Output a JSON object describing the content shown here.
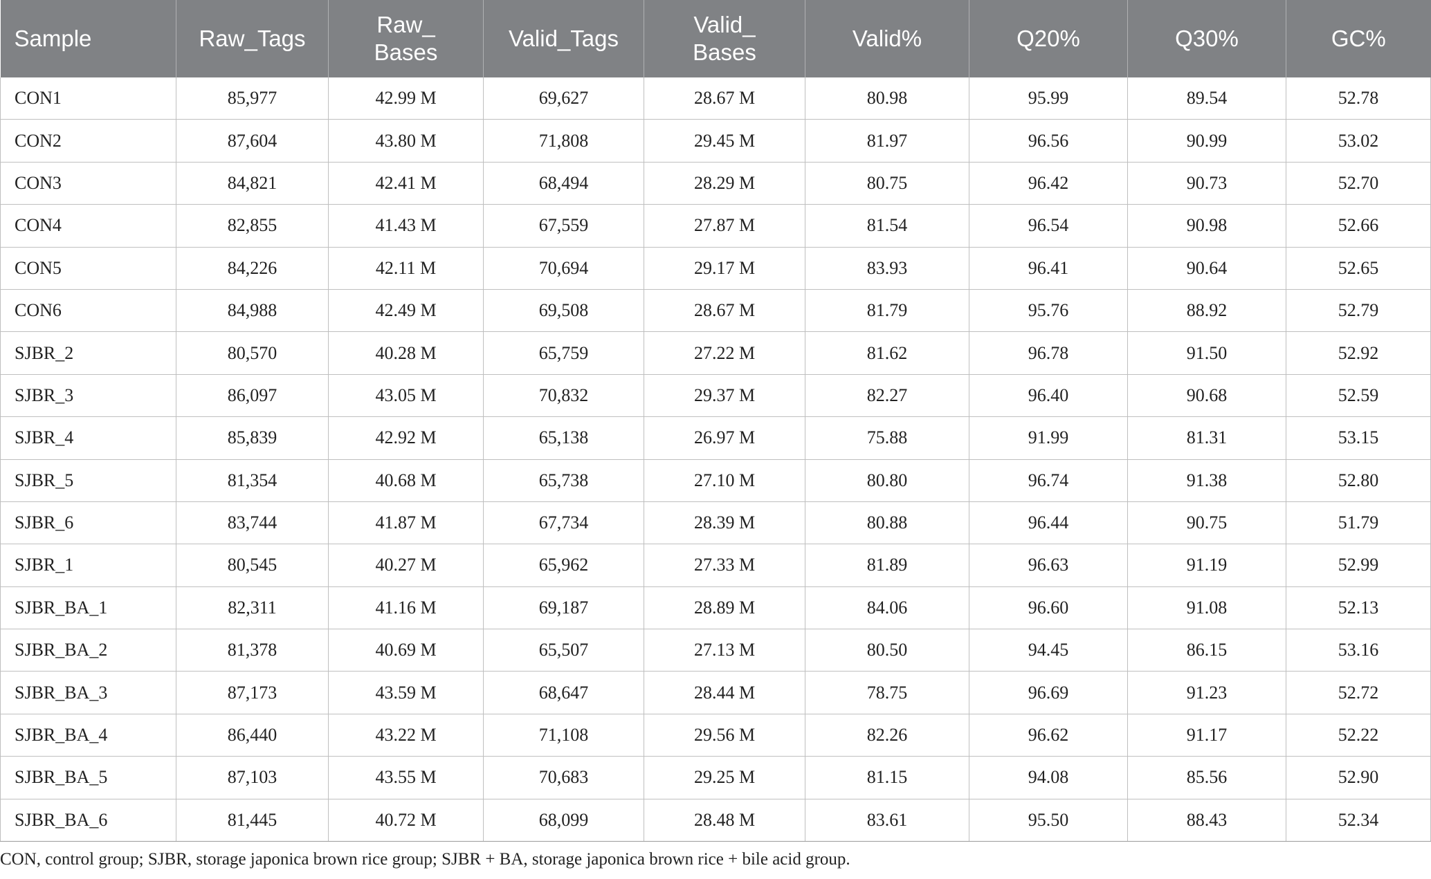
{
  "table": {
    "headers": [
      [
        "Sample"
      ],
      [
        "Raw_Tags"
      ],
      [
        "Raw_",
        "Bases"
      ],
      [
        "Valid_Tags"
      ],
      [
        "Valid_",
        "Bases"
      ],
      [
        "Valid%"
      ],
      [
        "Q20%"
      ],
      [
        "Q30%"
      ],
      [
        "GC%"
      ]
    ],
    "rows": [
      [
        "CON1",
        "85,977",
        "42.99 M",
        "69,627",
        "28.67 M",
        "80.98",
        "95.99",
        "89.54",
        "52.78"
      ],
      [
        "CON2",
        "87,604",
        "43.80 M",
        "71,808",
        "29.45 M",
        "81.97",
        "96.56",
        "90.99",
        "53.02"
      ],
      [
        "CON3",
        "84,821",
        "42.41 M",
        "68,494",
        "28.29 M",
        "80.75",
        "96.42",
        "90.73",
        "52.70"
      ],
      [
        "CON4",
        "82,855",
        "41.43 M",
        "67,559",
        "27.87 M",
        "81.54",
        "96.54",
        "90.98",
        "52.66"
      ],
      [
        "CON5",
        "84,226",
        "42.11 M",
        "70,694",
        "29.17 M",
        "83.93",
        "96.41",
        "90.64",
        "52.65"
      ],
      [
        "CON6",
        "84,988",
        "42.49 M",
        "69,508",
        "28.67 M",
        "81.79",
        "95.76",
        "88.92",
        "52.79"
      ],
      [
        "SJBR_2",
        "80,570",
        "40.28 M",
        "65,759",
        "27.22 M",
        "81.62",
        "96.78",
        "91.50",
        "52.92"
      ],
      [
        "SJBR_3",
        "86,097",
        "43.05 M",
        "70,832",
        "29.37 M",
        "82.27",
        "96.40",
        "90.68",
        "52.59"
      ],
      [
        "SJBR_4",
        "85,839",
        "42.92 M",
        "65,138",
        "26.97 M",
        "75.88",
        "91.99",
        "81.31",
        "53.15"
      ],
      [
        "SJBR_5",
        "81,354",
        "40.68 M",
        "65,738",
        "27.10 M",
        "80.80",
        "96.74",
        "91.38",
        "52.80"
      ],
      [
        "SJBR_6",
        "83,744",
        "41.87 M",
        "67,734",
        "28.39 M",
        "80.88",
        "96.44",
        "90.75",
        "51.79"
      ],
      [
        "SJBR_1",
        "80,545",
        "40.27 M",
        "65,962",
        "27.33 M",
        "81.89",
        "96.63",
        "91.19",
        "52.99"
      ],
      [
        "SJBR_BA_1",
        "82,311",
        "41.16 M",
        "69,187",
        "28.89 M",
        "84.06",
        "96.60",
        "91.08",
        "52.13"
      ],
      [
        "SJBR_BA_2",
        "81,378",
        "40.69 M",
        "65,507",
        "27.13 M",
        "80.50",
        "94.45",
        "86.15",
        "53.16"
      ],
      [
        "SJBR_BA_3",
        "87,173",
        "43.59 M",
        "68,647",
        "28.44 M",
        "78.75",
        "96.69",
        "91.23",
        "52.72"
      ],
      [
        "SJBR_BA_4",
        "86,440",
        "43.22 M",
        "71,108",
        "29.56 M",
        "82.26",
        "96.62",
        "91.17",
        "52.22"
      ],
      [
        "SJBR_BA_5",
        "87,103",
        "43.55 M",
        "70,683",
        "29.25 M",
        "81.15",
        "94.08",
        "85.56",
        "52.90"
      ],
      [
        "SJBR_BA_6",
        "81,445",
        "40.72 M",
        "68,099",
        "28.48 M",
        "83.61",
        "95.50",
        "88.43",
        "52.34"
      ]
    ]
  },
  "footnote": "CON, control group; SJBR, storage japonica brown rice group; SJBR + BA, storage japonica brown rice + bile acid group.",
  "colors": {
    "header_background": "#808285",
    "header_text": "#ffffff",
    "grid_line": "#bfbfbf"
  }
}
